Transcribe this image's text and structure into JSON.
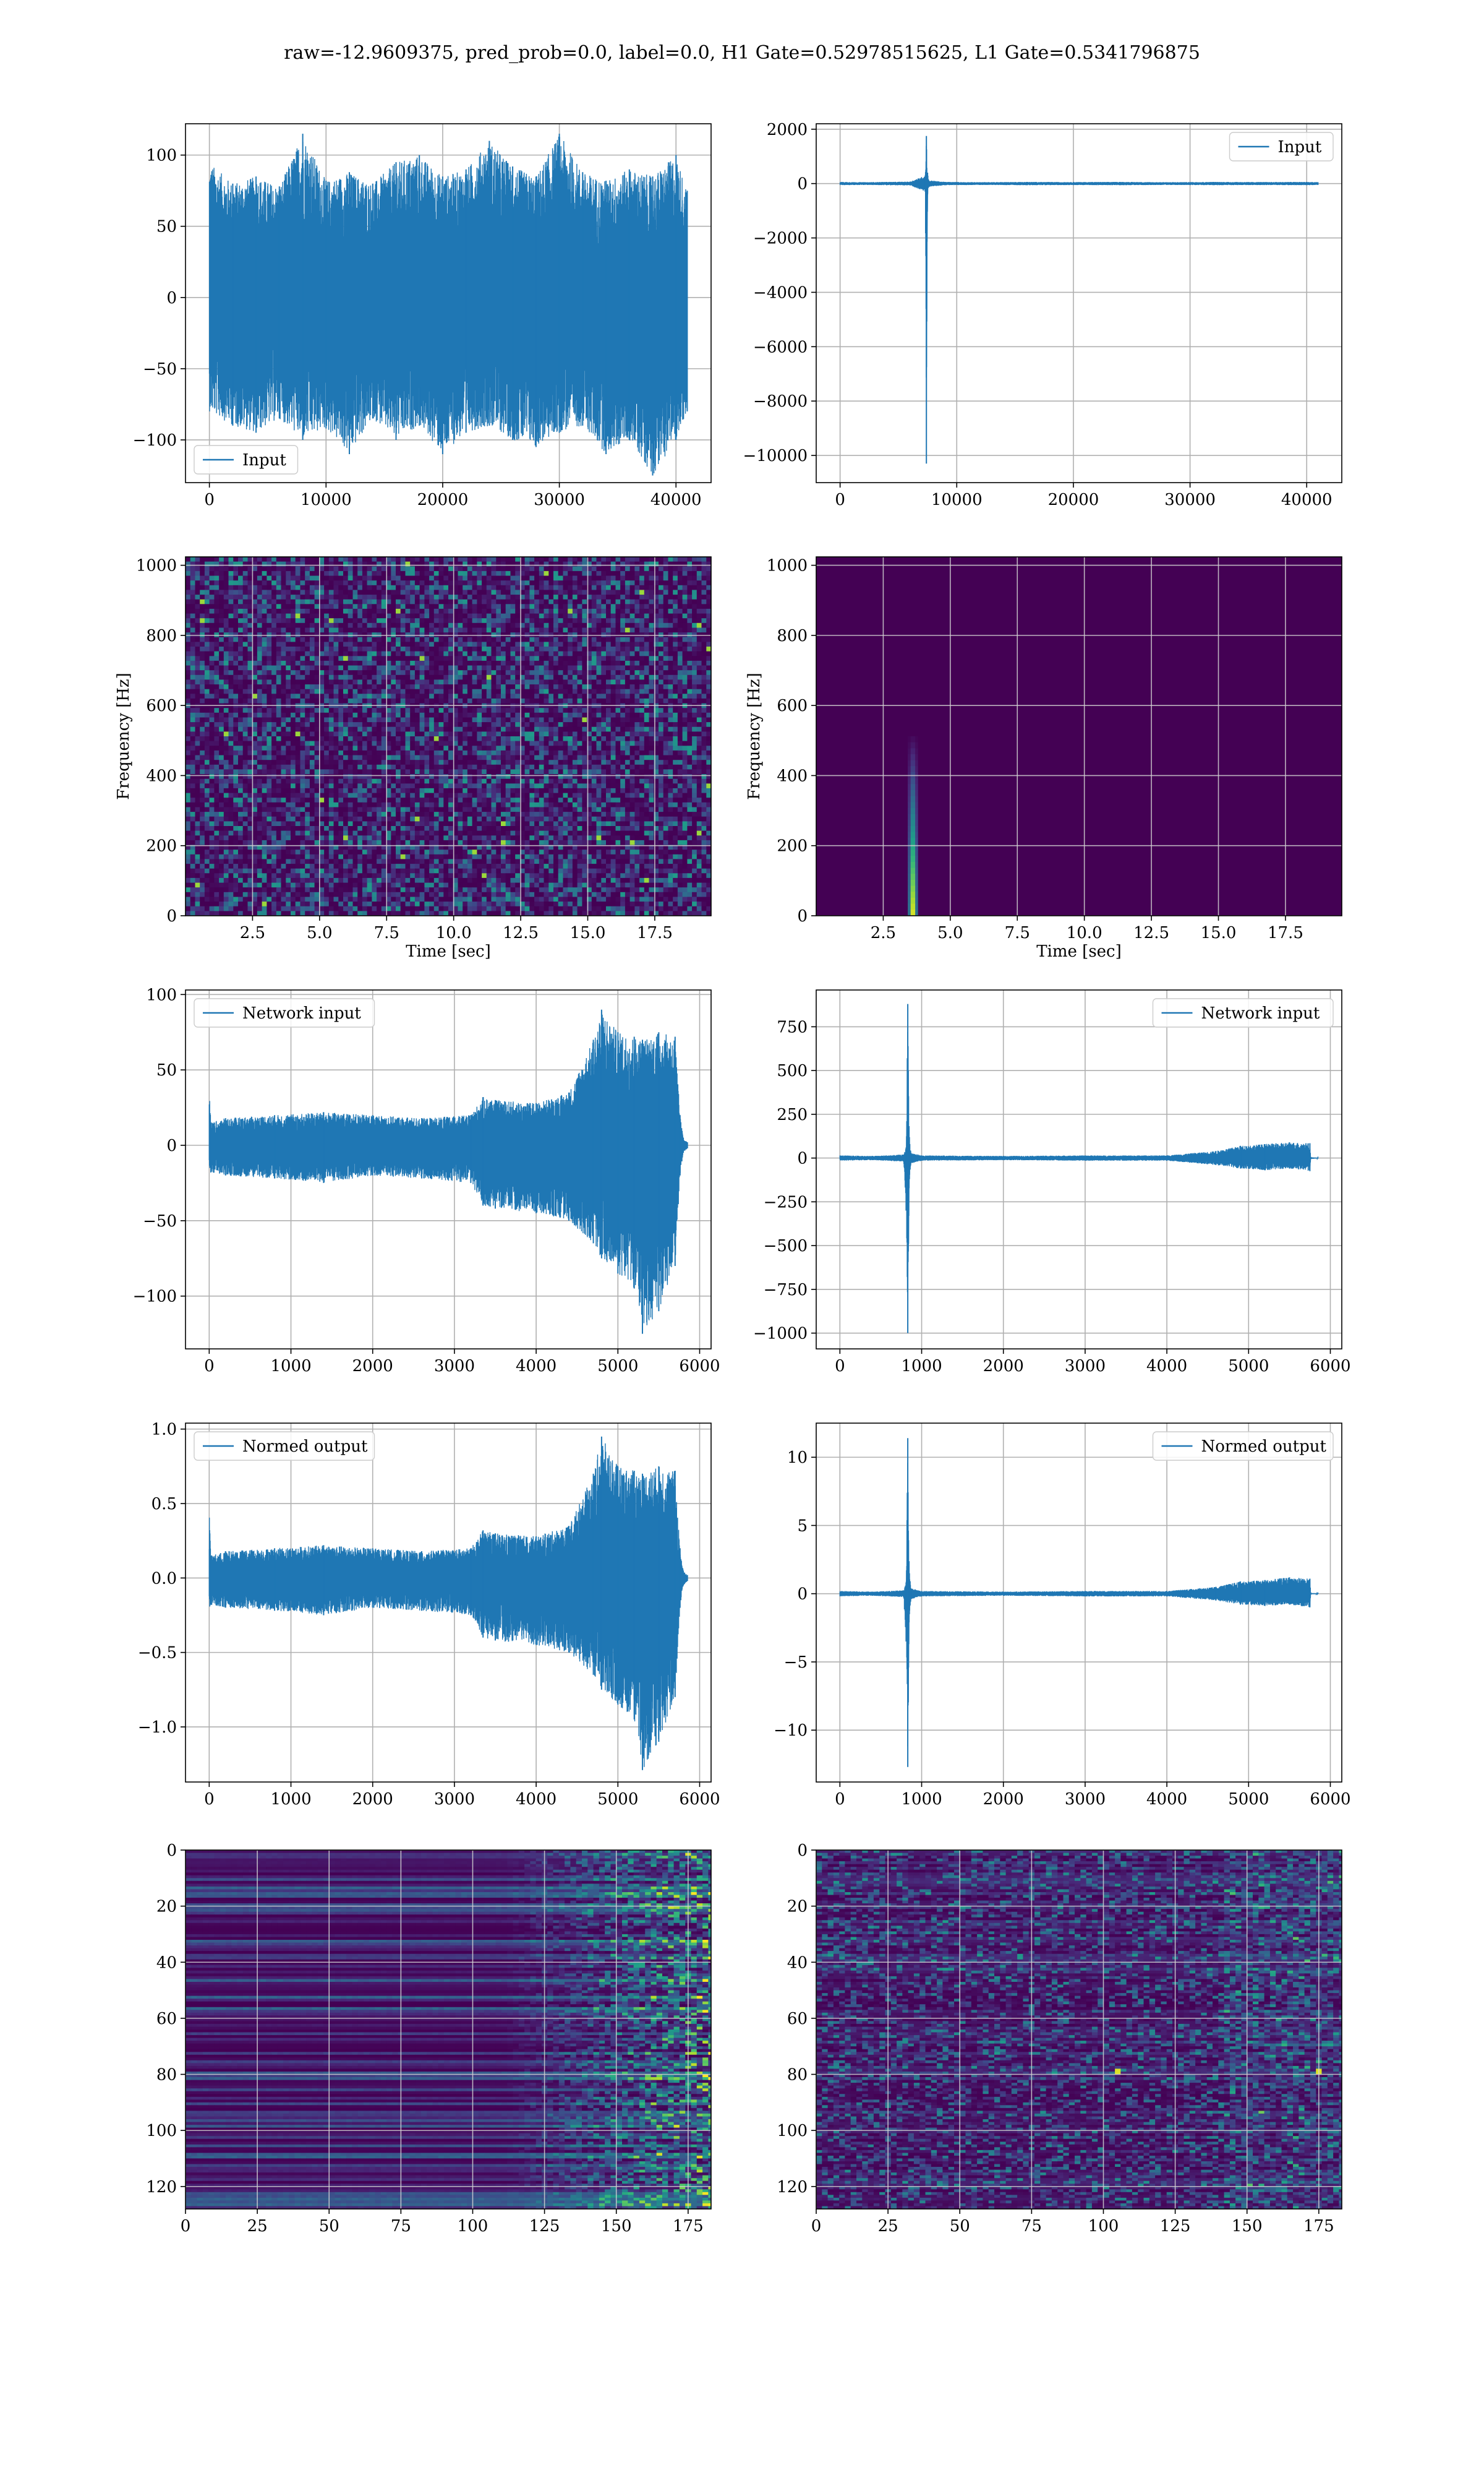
{
  "figure": {
    "title": "raw=-12.9609375, pred_prob=0.0, label=0.0, H1 Gate=0.52978515625, L1 Gate=0.5341796875"
  },
  "colors": {
    "line": "#1f77b4",
    "grid": "#b0b0b0",
    "viridis_dark": "#440154",
    "viridis_mid": "#21918c",
    "viridis_bright": "#fde725"
  },
  "chart_data": [
    {
      "id": "h1-input",
      "type": "line",
      "legend": [
        "Input"
      ],
      "legend_loc": "lower-left",
      "x": [
        0,
        2000,
        4000,
        6000,
        8000,
        10000,
        12000,
        14000,
        16000,
        18000,
        20000,
        22000,
        24000,
        26000,
        28000,
        30000,
        32000,
        34000,
        36000,
        38000,
        40000,
        40960
      ],
      "series": [
        {
          "upper": [
            95,
            80,
            85,
            78,
            115,
            82,
            88,
            80,
            95,
            100,
            85,
            90,
            110,
            92,
            85,
            115,
            88,
            82,
            90,
            85,
            100,
            75
          ],
          "lower": [
            -80,
            -90,
            -95,
            -85,
            -100,
            -92,
            -110,
            -85,
            -100,
            -90,
            -110,
            -95,
            -90,
            -100,
            -105,
            -95,
            -90,
            -110,
            -100,
            -125,
            -100,
            -80
          ]
        }
      ],
      "xlim": [
        -2048,
        43008
      ],
      "ylim": [
        -130,
        122
      ],
      "xticks": [
        0,
        10000,
        20000,
        30000,
        40000
      ],
      "xticklabels": [
        "0",
        "10000",
        "20000",
        "30000",
        "40000"
      ],
      "yticks": [
        -100,
        -50,
        0,
        50,
        100
      ],
      "yticklabels": [
        "−100",
        "−50",
        "0",
        "50",
        "100"
      ],
      "grid": true
    },
    {
      "id": "l1-input",
      "type": "line",
      "legend": [
        "Input"
      ],
      "legend_loc": "upper-right",
      "x": [
        0,
        2000,
        4000,
        6000,
        7300,
        7400,
        7500,
        7600,
        9000,
        12000,
        16000,
        20000,
        24000,
        28000,
        32000,
        36000,
        40000,
        40960
      ],
      "series": [
        {
          "upper": [
            60,
            50,
            60,
            70,
            300,
            1750,
            400,
            120,
            60,
            50,
            60,
            55,
            60,
            50,
            60,
            55,
            60,
            50
          ],
          "lower": [
            -60,
            -50,
            -60,
            -70,
            -300,
            -10300,
            -400,
            -120,
            -60,
            -50,
            -60,
            -55,
            -60,
            -50,
            -60,
            -55,
            -60,
            -50
          ]
        }
      ],
      "xlim": [
        -2048,
        43008
      ],
      "ylim": [
        -11000,
        2200
      ],
      "xticks": [
        0,
        10000,
        20000,
        30000,
        40000
      ],
      "xticklabels": [
        "0",
        "10000",
        "20000",
        "30000",
        "40000"
      ],
      "yticks": [
        -10000,
        -8000,
        -6000,
        -4000,
        -2000,
        0,
        2000
      ],
      "yticklabels": [
        "−10000",
        "−8000",
        "−6000",
        "−4000",
        "−2000",
        "0",
        "2000"
      ],
      "grid": true
    },
    {
      "id": "h1-spectrogram",
      "type": "heatmap",
      "pattern": "noise",
      "ylabel": "Frequency [Hz]",
      "xlabel": "Time [sec]",
      "xlim": [
        0,
        19.6
      ],
      "ylim": [
        0,
        1024
      ],
      "xticks": [
        2.5,
        5.0,
        7.5,
        10.0,
        12.5,
        15.0,
        17.5
      ],
      "xticklabels": [
        "2.5",
        "5.0",
        "7.5",
        "10.0",
        "12.5",
        "15.0",
        "17.5"
      ],
      "yticks": [
        0,
        200,
        400,
        600,
        800,
        1000
      ],
      "yticklabels": [
        "0",
        "200",
        "400",
        "600",
        "800",
        "1000"
      ],
      "grid": true
    },
    {
      "id": "l1-spectrogram",
      "type": "heatmap",
      "pattern": "glitch",
      "glitch_time": 3.6,
      "ylabel": "Frequency [Hz]",
      "xlabel": "Time [sec]",
      "xlim": [
        0,
        19.6
      ],
      "ylim": [
        0,
        1024
      ],
      "xticks": [
        2.5,
        5.0,
        7.5,
        10.0,
        12.5,
        15.0,
        17.5
      ],
      "xticklabels": [
        "2.5",
        "5.0",
        "7.5",
        "10.0",
        "12.5",
        "15.0",
        "17.5"
      ],
      "yticks": [
        0,
        200,
        400,
        600,
        800,
        1000
      ],
      "yticklabels": [
        "0",
        "200",
        "400",
        "600",
        "800",
        "1000"
      ],
      "grid": true
    },
    {
      "id": "h1-network-input",
      "type": "line",
      "legend": [
        "Network input"
      ],
      "legend_loc": "upper-left",
      "x": [
        0,
        20,
        200,
        800,
        1400,
        2000,
        2600,
        3200,
        3350,
        3500,
        4000,
        4400,
        4700,
        4800,
        5000,
        5200,
        5300,
        5500,
        5700,
        5760,
        5800,
        5850
      ],
      "series": [
        {
          "upper": [
            45,
            15,
            18,
            20,
            22,
            20,
            18,
            20,
            32,
            30,
            28,
            35,
            70,
            90,
            75,
            72,
            70,
            75,
            72,
            20,
            5,
            2
          ],
          "lower": [
            -20,
            -18,
            -20,
            -22,
            -25,
            -20,
            -22,
            -25,
            -40,
            -42,
            -45,
            -50,
            -65,
            -75,
            -85,
            -95,
            -125,
            -110,
            -80,
            -20,
            -5,
            -2
          ]
        }
      ],
      "xlim": [
        -290,
        6140
      ],
      "ylim": [
        -135,
        103
      ],
      "xticks": [
        0,
        1000,
        2000,
        3000,
        4000,
        5000,
        6000
      ],
      "xticklabels": [
        "0",
        "1000",
        "2000",
        "3000",
        "4000",
        "5000",
        "6000"
      ],
      "yticks": [
        -100,
        -50,
        0,
        50,
        100
      ],
      "yticklabels": [
        "−100",
        "−50",
        "0",
        "50",
        "100"
      ],
      "grid": true
    },
    {
      "id": "l1-network-input",
      "type": "line",
      "legend": [
        "Network input"
      ],
      "legend_loc": "upper-right",
      "x": [
        0,
        400,
        780,
        810,
        830,
        850,
        870,
        1000,
        2000,
        3000,
        4000,
        4600,
        4900,
        5200,
        5500,
        5750,
        5760,
        5850
      ],
      "series": [
        {
          "upper": [
            15,
            12,
            20,
            60,
            880,
            120,
            30,
            15,
            12,
            15,
            15,
            40,
            70,
            80,
            90,
            85,
            5,
            2
          ],
          "lower": [
            -15,
            -12,
            -20,
            -300,
            -1000,
            -120,
            -30,
            -15,
            -12,
            -15,
            -15,
            -40,
            -60,
            -70,
            -60,
            -75,
            -5,
            -2
          ]
        }
      ],
      "xlim": [
        -290,
        6140
      ],
      "ylim": [
        -1090,
        960
      ],
      "xticks": [
        0,
        1000,
        2000,
        3000,
        4000,
        5000,
        6000
      ],
      "xticklabels": [
        "0",
        "1000",
        "2000",
        "3000",
        "4000",
        "5000",
        "6000"
      ],
      "yticks": [
        -1000,
        -750,
        -500,
        -250,
        0,
        250,
        500,
        750
      ],
      "yticklabels": [
        "−1000",
        "−750",
        "−500",
        "−250",
        "0",
        "250",
        "500",
        "750"
      ],
      "grid": true
    },
    {
      "id": "h1-normed-output",
      "type": "line",
      "legend": [
        "Normed output"
      ],
      "legend_loc": "upper-left",
      "x": [
        0,
        20,
        200,
        800,
        1400,
        2000,
        2600,
        3200,
        3350,
        3500,
        4000,
        4400,
        4700,
        4800,
        5000,
        5200,
        5300,
        5500,
        5700,
        5760,
        5800,
        5850
      ],
      "series": [
        {
          "upper": [
            0.46,
            0.15,
            0.18,
            0.2,
            0.22,
            0.2,
            0.18,
            0.2,
            0.32,
            0.3,
            0.28,
            0.35,
            0.7,
            0.95,
            0.75,
            0.72,
            0.7,
            0.75,
            0.72,
            0.2,
            0.05,
            0.02
          ],
          "lower": [
            -0.2,
            -0.18,
            -0.2,
            -0.22,
            -0.25,
            -0.2,
            -0.22,
            -0.25,
            -0.4,
            -0.42,
            -0.45,
            -0.5,
            -0.65,
            -0.75,
            -0.85,
            -0.95,
            -1.29,
            -1.1,
            -0.8,
            -0.2,
            -0.05,
            -0.02
          ]
        }
      ],
      "xlim": [
        -290,
        6140
      ],
      "ylim": [
        -1.37,
        1.04
      ],
      "xticks": [
        0,
        1000,
        2000,
        3000,
        4000,
        5000,
        6000
      ],
      "xticklabels": [
        "0",
        "1000",
        "2000",
        "3000",
        "4000",
        "5000",
        "6000"
      ],
      "yticks": [
        -1.0,
        -0.5,
        0.0,
        0.5,
        1.0
      ],
      "yticklabels": [
        "−1.0",
        "−0.5",
        "0.0",
        "0.5",
        "1.0"
      ],
      "grid": true
    },
    {
      "id": "l1-normed-output",
      "type": "line",
      "legend": [
        "Normed output"
      ],
      "legend_loc": "upper-right",
      "x": [
        0,
        400,
        780,
        810,
        830,
        850,
        870,
        1000,
        2000,
        3000,
        4000,
        4600,
        4900,
        5200,
        5500,
        5750,
        5760,
        5850
      ],
      "series": [
        {
          "upper": [
            0.2,
            0.15,
            0.25,
            0.8,
            11.4,
            1.5,
            0.4,
            0.2,
            0.15,
            0.2,
            0.2,
            0.5,
            0.9,
            1.0,
            1.2,
            1.1,
            0.05,
            0.02
          ],
          "lower": [
            -0.2,
            -0.15,
            -0.25,
            -3.5,
            -12.7,
            -1.5,
            -0.4,
            -0.2,
            -0.15,
            -0.2,
            -0.2,
            -0.5,
            -0.8,
            -0.9,
            -0.8,
            -1.0,
            -0.05,
            -0.02
          ]
        }
      ],
      "xlim": [
        -290,
        6140
      ],
      "ylim": [
        -13.8,
        12.5
      ],
      "xticks": [
        0,
        1000,
        2000,
        3000,
        4000,
        5000,
        6000
      ],
      "xticklabels": [
        "0",
        "1000",
        "2000",
        "3000",
        "4000",
        "5000",
        "6000"
      ],
      "yticks": [
        -10,
        -5,
        0,
        5,
        10
      ],
      "yticklabels": [
        "−10",
        "−5",
        "0",
        "5",
        "10"
      ],
      "grid": true
    },
    {
      "id": "h1-features",
      "type": "heatmap",
      "pattern": "h1-features",
      "rows": 128,
      "cols": 183,
      "xlim": [
        0,
        183
      ],
      "ylim": [
        128,
        0
      ],
      "xticks": [
        0,
        25,
        50,
        75,
        100,
        125,
        150,
        175
      ],
      "xticklabels": [
        "0",
        "25",
        "50",
        "75",
        "100",
        "125",
        "150",
        "175"
      ],
      "yticks": [
        0,
        20,
        40,
        60,
        80,
        100,
        120
      ],
      "yticklabels": [
        "0",
        "20",
        "40",
        "60",
        "80",
        "100",
        "120"
      ],
      "grid": true
    },
    {
      "id": "l1-features",
      "type": "heatmap",
      "pattern": "l1-features",
      "rows": 128,
      "cols": 183,
      "xlim": [
        0,
        183
      ],
      "ylim": [
        128,
        0
      ],
      "xticks": [
        0,
        25,
        50,
        75,
        100,
        125,
        150,
        175
      ],
      "xticklabels": [
        "0",
        "25",
        "50",
        "75",
        "100",
        "125",
        "150",
        "175"
      ],
      "yticks": [
        0,
        20,
        40,
        60,
        80,
        100,
        120
      ],
      "yticklabels": [
        "0",
        "20",
        "40",
        "60",
        "80",
        "100",
        "120"
      ],
      "grid": true
    }
  ]
}
